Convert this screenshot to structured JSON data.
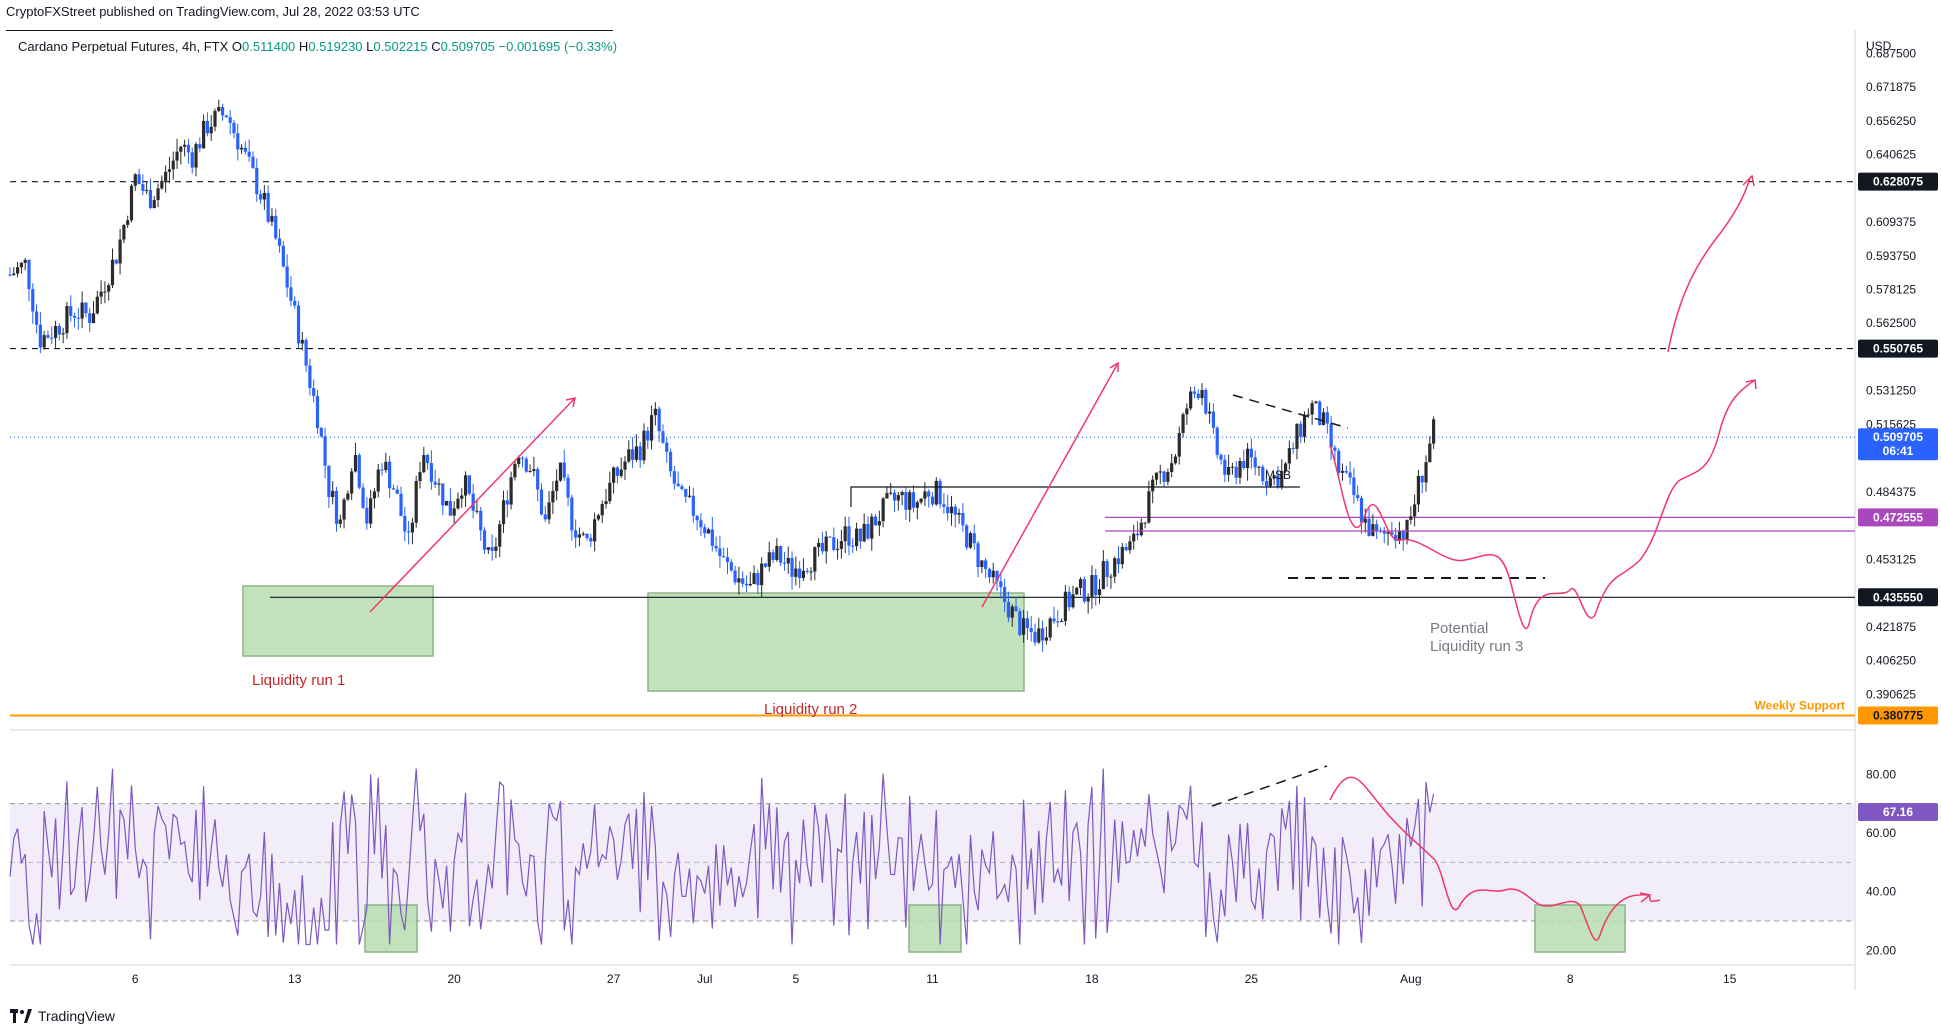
{
  "header": {
    "publisher_line": "CryptoFXStreet published on TradingView.com, Jul 28, 2022 03:53 UTC"
  },
  "symbol": {
    "name": "Cardano Perpetual Futures, 4h, FTX",
    "o_label": "O",
    "o_value": "0.511400",
    "h_label": "H",
    "h_value": "0.519230",
    "l_label": "L",
    "l_value": "0.502215",
    "c_label": "C",
    "c_value": "0.509705",
    "change": "−0.001695 (−0.33%)"
  },
  "footer": {
    "brand": "TradingView"
  },
  "colors": {
    "up_candle": "#2b2b2b",
    "down_candle": "#2962ff",
    "arrow": "#f0386b",
    "rsi_line": "#7e57c2",
    "rsi_band": "#ede7f6",
    "zone_fill": "#b7deb0",
    "zone_stroke": "#7aa874",
    "support": "#ff9800",
    "magenta_level": "#ab47bc",
    "current_price": "#2962ff"
  },
  "chart_data": {
    "type": "candlestick",
    "currency": "USD",
    "y_ticks": [
      "0.687500",
      "0.671875",
      "0.656250",
      "0.640625",
      "0.609375",
      "0.593750",
      "0.578125",
      "0.562500",
      "0.531250",
      "0.515625",
      "0.484375",
      "0.453125",
      "0.421875",
      "0.406250",
      "0.390625"
    ],
    "ylim": [
      0.375,
      0.69
    ],
    "x_ticks": [
      "6",
      "13",
      "20",
      "27",
      "Jul",
      "5",
      "11",
      "18",
      "25",
      "Aug",
      "8",
      "15"
    ],
    "x_tick_days": [
      6,
      13,
      20,
      27,
      31,
      35,
      41,
      48,
      55,
      62,
      69,
      76
    ],
    "xlim_days": [
      0.5,
      81.5
    ],
    "price_path": [
      [
        0.5,
        0.585
      ],
      [
        1.2,
        0.59
      ],
      [
        1.8,
        0.555
      ],
      [
        2.5,
        0.56
      ],
      [
        3.3,
        0.568
      ],
      [
        4.0,
        0.566
      ],
      [
        4.6,
        0.58
      ],
      [
        5.2,
        0.595
      ],
      [
        6.0,
        0.63
      ],
      [
        6.6,
        0.62
      ],
      [
        7.3,
        0.63
      ],
      [
        8.0,
        0.645
      ],
      [
        8.5,
        0.64
      ],
      [
        9.2,
        0.655
      ],
      [
        10.0,
        0.66
      ],
      [
        10.8,
        0.64
      ],
      [
        11.6,
        0.62
      ],
      [
        12.2,
        0.6
      ],
      [
        12.8,
        0.575
      ],
      [
        13.4,
        0.548
      ],
      [
        14.0,
        0.52
      ],
      [
        14.5,
        0.486
      ],
      [
        15.0,
        0.47
      ],
      [
        15.6,
        0.505
      ],
      [
        16.2,
        0.47
      ],
      [
        16.8,
        0.5
      ],
      [
        17.4,
        0.485
      ],
      [
        18.0,
        0.46
      ],
      [
        18.6,
        0.505
      ],
      [
        19.2,
        0.49
      ],
      [
        19.8,
        0.475
      ],
      [
        20.4,
        0.49
      ],
      [
        21.0,
        0.47
      ],
      [
        21.6,
        0.45
      ],
      [
        22.2,
        0.478
      ],
      [
        22.8,
        0.505
      ],
      [
        23.4,
        0.495
      ],
      [
        24.0,
        0.47
      ],
      [
        24.6,
        0.495
      ],
      [
        25.2,
        0.47
      ],
      [
        25.8,
        0.46
      ],
      [
        26.4,
        0.478
      ],
      [
        27.0,
        0.49
      ],
      [
        27.6,
        0.5
      ],
      [
        28.2,
        0.505
      ],
      [
        28.8,
        0.52
      ],
      [
        29.4,
        0.495
      ],
      [
        30.0,
        0.48
      ],
      [
        30.6,
        0.475
      ],
      [
        31.2,
        0.465
      ],
      [
        31.8,
        0.452
      ],
      [
        32.4,
        0.445
      ],
      [
        33.0,
        0.44
      ],
      [
        33.6,
        0.45
      ],
      [
        34.2,
        0.455
      ],
      [
        34.8,
        0.448
      ],
      [
        35.4,
        0.452
      ],
      [
        36.0,
        0.455
      ],
      [
        36.6,
        0.46
      ],
      [
        37.2,
        0.465
      ],
      [
        37.8,
        0.462
      ],
      [
        38.4,
        0.47
      ],
      [
        39.0,
        0.478
      ],
      [
        39.6,
        0.482
      ],
      [
        40.2,
        0.478
      ],
      [
        40.8,
        0.485
      ],
      [
        41.4,
        0.483
      ],
      [
        42.0,
        0.472
      ],
      [
        42.6,
        0.462
      ],
      [
        43.2,
        0.45
      ],
      [
        43.8,
        0.44
      ],
      [
        44.4,
        0.43
      ],
      [
        45.0,
        0.42
      ],
      [
        45.6,
        0.418
      ],
      [
        46.2,
        0.425
      ],
      [
        46.8,
        0.432
      ],
      [
        47.4,
        0.438
      ],
      [
        48.0,
        0.44
      ],
      [
        48.6,
        0.448
      ],
      [
        49.2,
        0.455
      ],
      [
        49.8,
        0.46
      ],
      [
        50.4,
        0.478
      ],
      [
        51.0,
        0.492
      ],
      [
        51.6,
        0.5
      ],
      [
        52.2,
        0.525
      ],
      [
        52.8,
        0.535
      ],
      [
        53.4,
        0.505
      ],
      [
        54.0,
        0.49
      ],
      [
        54.6,
        0.5
      ],
      [
        55.2,
        0.497
      ],
      [
        55.8,
        0.49
      ],
      [
        56.4,
        0.493
      ],
      [
        57.0,
        0.51
      ],
      [
        57.6,
        0.525
      ],
      [
        58.2,
        0.515
      ],
      [
        58.8,
        0.495
      ],
      [
        59.4,
        0.485
      ],
      [
        60.0,
        0.47
      ],
      [
        60.6,
        0.462
      ],
      [
        61.2,
        0.468
      ],
      [
        61.8,
        0.465
      ],
      [
        62.4,
        0.49
      ],
      [
        63.0,
        0.512
      ]
    ],
    "levels": [
      {
        "label": "0.628075",
        "value": 0.628075,
        "style": "dashed-black"
      },
      {
        "label": "0.550765",
        "value": 0.550765,
        "style": "dashed-black"
      },
      {
        "label": "0.509705",
        "sublabel": "06:41",
        "value": 0.509705,
        "style": "dotted-blue"
      },
      {
        "label": "0.472555",
        "value": 0.472555,
        "style": "solid-magenta"
      },
      {
        "label": "0.435550",
        "value": 0.43555,
        "style": "solid-black"
      },
      {
        "label": "0.380775",
        "value": 0.380775,
        "style": "solid-orange",
        "caption": "Weekly Support"
      }
    ],
    "annotations": [
      {
        "text": "Liquidity run 1"
      },
      {
        "text": "Liquidity run 2"
      },
      {
        "text": "Potential"
      },
      {
        "text": "Liquidity run 3"
      },
      {
        "text": "MSB"
      }
    ],
    "rsi": {
      "y_ticks": [
        "80.00",
        "60.00",
        "40.00",
        "20.00"
      ],
      "ylim": [
        15,
        90
      ],
      "band": [
        30,
        70
      ],
      "current_label": "67.16",
      "current_value": 67.16
    }
  }
}
